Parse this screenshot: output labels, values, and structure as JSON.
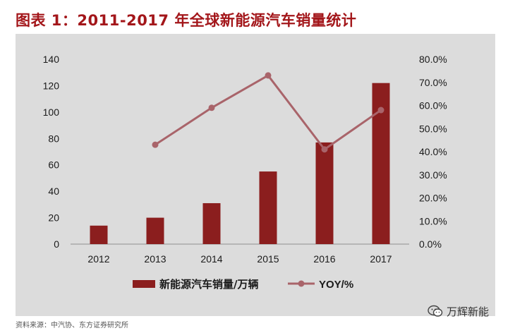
{
  "title": "图表 1：2011-2017 年全球新能源汽车销量统计",
  "source_note": "资料来源：中汽协、东方证券研究所",
  "brand": {
    "name": "万辉新能",
    "icon": "wechat-icon"
  },
  "colors": {
    "title": "#a3161a",
    "bar": "#8b1e1e",
    "line": "#a9646a",
    "panel": "#dcdcdc"
  },
  "chart_data": {
    "type": "bar",
    "categories": [
      "2012",
      "2013",
      "2014",
      "2015",
      "2016",
      "2017"
    ],
    "series": [
      {
        "name": "新能源汽车销量/万辆",
        "kind": "bar",
        "axis": "left",
        "values": [
          14,
          20,
          31,
          55,
          77,
          122
        ]
      },
      {
        "name": "YOY/%",
        "kind": "line",
        "axis": "right",
        "values": [
          null,
          43.0,
          59.0,
          73.0,
          41.0,
          58.0
        ]
      }
    ],
    "left_axis": {
      "ylim": [
        0,
        140
      ],
      "ticks": [
        "0",
        "20",
        "40",
        "60",
        "80",
        "100",
        "120",
        "140"
      ]
    },
    "right_axis": {
      "ylim": [
        0,
        80
      ],
      "ticks": [
        "0.0%",
        "10.0%",
        "20.0%",
        "30.0%",
        "40.0%",
        "50.0%",
        "60.0%",
        "70.0%",
        "80.0%"
      ]
    },
    "legend_position": "bottom",
    "grid": false
  }
}
